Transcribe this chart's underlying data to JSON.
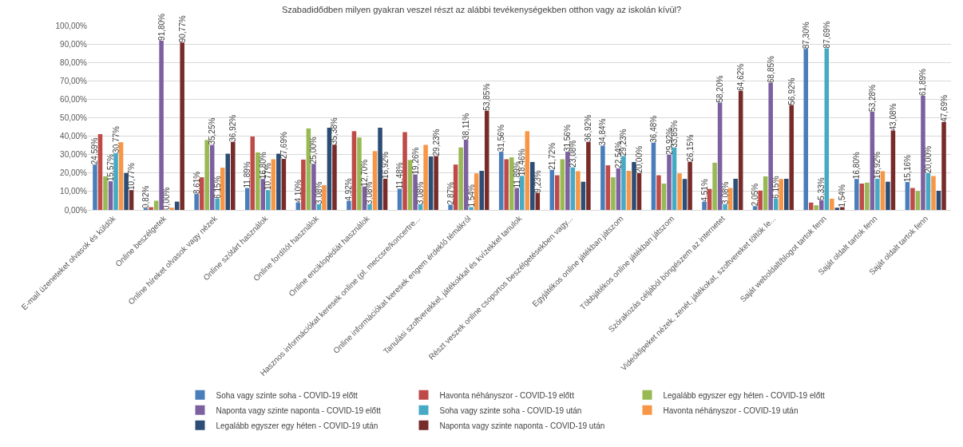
{
  "chart_data": {
    "type": "bar",
    "title": "Szabadidődben milyen gyakran veszel részt az alábbi tevékenységekben otthon vagy az iskolán kívül?",
    "categories": [
      "E-mail üzeneteket olvasok és küldök",
      "Online beszélgetek",
      "Online híreket olvasok vagy nézek",
      "Online szótárt használok",
      "Online fordítót használok",
      "Online enciklopédiát használok",
      "Hasznos információkat keresek online (pl. meccsre/koncertre...",
      "Online információkat keresek engem érdeklő témákról",
      "Tanulási szoftverekkel, játékokkal és kvízekkel tanulok",
      "Részt veszek online csoportos beszélgetésekben vagy...",
      "Egyjátékos online játékban játszom",
      "Többjátékos online játékban játszom",
      "Szórakozás céljából böngészem az internetet",
      "Videóklipeket nézek, zenét, játékokat, szoftvereket töltök le...",
      "Saját weboldalt/blogot tartok fenn",
      "Saját oldalt tartok fenn",
      "Saját oldalt tartok fenn"
    ],
    "ylim": [
      0,
      100
    ],
    "yticks": [
      {
        "value": 0,
        "label": "0,00%"
      },
      {
        "value": 10,
        "label": "10,00%"
      },
      {
        "value": 20,
        "label": "20,00%"
      },
      {
        "value": 30,
        "label": "30,00%"
      },
      {
        "value": 40,
        "label": "40,00%"
      },
      {
        "value": 50,
        "label": "50,00%"
      },
      {
        "value": 60,
        "label": "60,00%"
      },
      {
        "value": 70,
        "label": "70,00%"
      },
      {
        "value": 80,
        "label": "80,00%"
      },
      {
        "value": 90,
        "label": "90,00%"
      },
      {
        "value": 100,
        "label": "100,00%"
      }
    ],
    "grid": "y",
    "legend": "bottom",
    "series": [
      {
        "name": "Soha vagy szinte soha - COVID-19 előtt",
        "color": "#4a7ebb",
        "values": [
          24.59,
          0.82,
          8.61,
          11.89,
          4.1,
          4.92,
          11.48,
          2.87,
          31.56,
          21.72,
          34.84,
          36.48,
          4.51,
          2.05,
          87.3,
          16.8,
          15.16
        ],
        "value_labels": [
          "24,59%",
          "0,82%",
          "8,61%",
          "11,89%",
          "4,10%",
          "4,92%",
          "11,48%",
          "2,87%",
          "31,56%",
          "21,72%",
          "34,84%",
          "36,48%",
          "4,51%",
          "2,05%",
          "87,30%",
          "16,80%",
          "15,16%"
        ]
      },
      {
        "name": "Havonta néhányszor - COVID-19 előtt",
        "color": "#be4b48",
        "values": [
          41.1,
          1.5,
          17.7,
          39.8,
          27.3,
          42.7,
          42.2,
          24.6,
          27.5,
          18.8,
          24.2,
          18.8,
          11.4,
          10.5,
          4.0,
          14.3,
          11.9
        ]
      },
      {
        "name": "Legalább egyszer egy héten - COVID-19 előtt",
        "color": "#98b954",
        "values": [
          18.2,
          5.0,
          37.9,
          31.2,
          44.2,
          39.3,
          27.1,
          33.9,
          28.5,
          27.5,
          17.7,
          14.3,
          25.6,
          18.2,
          2.5,
          14.8,
          10.3
        ]
      },
      {
        "name": "Naponta vagy szinte naponta - COVID-19 előtt",
        "color": "#7d60a0",
        "values": [
          15.57,
          91.8,
          35.25,
          16.8,
          25.0,
          12.7,
          19.26,
          38.11,
          11.89,
          31.56,
          22.54,
          29.92,
          58.2,
          68.85,
          5.33,
          53.28,
          61.89
        ],
        "value_labels": [
          "15,57%",
          "91,80%",
          "35,25%",
          "16,80%",
          "25,00%",
          "12,70%",
          "19,26%",
          "38,11%",
          "11,89%",
          "31,56%",
          "22,54%",
          "29,92%",
          "58,20%",
          "68,85%",
          "5,33%",
          "53,28%",
          "61,89%"
        ]
      },
      {
        "name": "Soha vagy szinte soha - COVID-19 után",
        "color": "#46aac5",
        "values": [
          30.77,
          0.0,
          6.15,
          10.77,
          3.08,
          3.08,
          3.08,
          1.54,
          18.46,
          23.08,
          29.23,
          33.85,
          3.08,
          6.15,
          87.69,
          16.92,
          20.0
        ],
        "value_labels": [
          "30,77%",
          "0,00%",
          "6,15%",
          "10,77%",
          "3,08%",
          "3,08%",
          "3,08%",
          "1,54%",
          "18,46%",
          "23,08%",
          "29,23%",
          "33,85%",
          "3,08%",
          "6,15%",
          "87,69%",
          "16,92%",
          "20,00%"
        ]
      },
      {
        "name": "Havonta néhányszor - COVID-19 után",
        "color": "#f79646",
        "values": [
          36.7,
          1.2,
          22.9,
          27.5,
          13.4,
          31.9,
          35.3,
          19.8,
          42.7,
          21.0,
          21.2,
          19.8,
          11.9,
          16.8,
          6.1,
          21.0,
          18.4
        ]
      },
      {
        "name": "Legalább egyszer egy héten - COVID-19 után",
        "color": "#2c4d75",
        "values": [
          20.0,
          4.5,
          30.5,
          30.5,
          44.6,
          44.6,
          29.0,
          21.2,
          26.0,
          15.3,
          26.0,
          16.8,
          16.9,
          16.9,
          1.2,
          15.3,
          10.4
        ]
      },
      {
        "name": "Naponta vagy szinte naponta - COVID-19 után",
        "color": "#772c2a",
        "values": [
          10.77,
          90.77,
          36.92,
          27.69,
          35.38,
          16.92,
          29.23,
          53.85,
          9.23,
          36.92,
          20.0,
          26.15,
          64.62,
          56.92,
          1.54,
          43.08,
          47.69
        ],
        "value_labels": [
          "10,77%",
          "90,77%",
          "36,92%",
          "27,69%",
          "35,38%",
          "16,92%",
          "29,23%",
          "53,85%",
          "9,23%",
          "36,92%",
          "20,00%",
          "26,15%",
          "64,62%",
          "56,92%",
          "1,54%",
          "43,08%",
          "47,69%"
        ]
      }
    ]
  }
}
